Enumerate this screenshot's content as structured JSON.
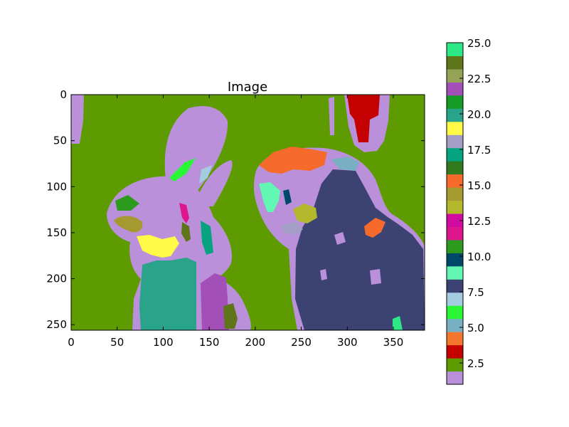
{
  "chart_data": {
    "type": "heatmap",
    "title": "Image",
    "xlabel": "",
    "ylabel": "",
    "image_width": 384,
    "image_height": 256,
    "x_ticks": [
      0,
      50,
      100,
      150,
      200,
      250,
      300,
      350
    ],
    "y_ticks": [
      0,
      50,
      100,
      150,
      200,
      250
    ],
    "colorbar": {
      "range": [
        1,
        25
      ],
      "ticks": [
        "2.5",
        "5.0",
        "7.5",
        "10.0",
        "12.5",
        "15.0",
        "17.5",
        "20.0",
        "22.5",
        "25.0"
      ],
      "tick_values": [
        2.5,
        5.0,
        7.5,
        10.0,
        12.5,
        15.0,
        17.5,
        20.0,
        22.5,
        25.0
      ],
      "colors": [
        "#b990d9",
        "#5e9b00",
        "#c50000",
        "#f5772e",
        "#79afc2",
        "#29f735",
        "#a3cce1",
        "#3c4372",
        "#63f7b4",
        "#004869",
        "#2c9b1d",
        "#de168c",
        "#d10ba1",
        "#b3b82d",
        "#a59a2f",
        "#f66a2c",
        "#327a1f",
        "#05a37f",
        "#a29ec6",
        "#fff948",
        "#29a38a",
        "#159b25",
        "#a24fb7",
        "#94a356",
        "#5e7519",
        "#2ee887"
      ]
    }
  }
}
